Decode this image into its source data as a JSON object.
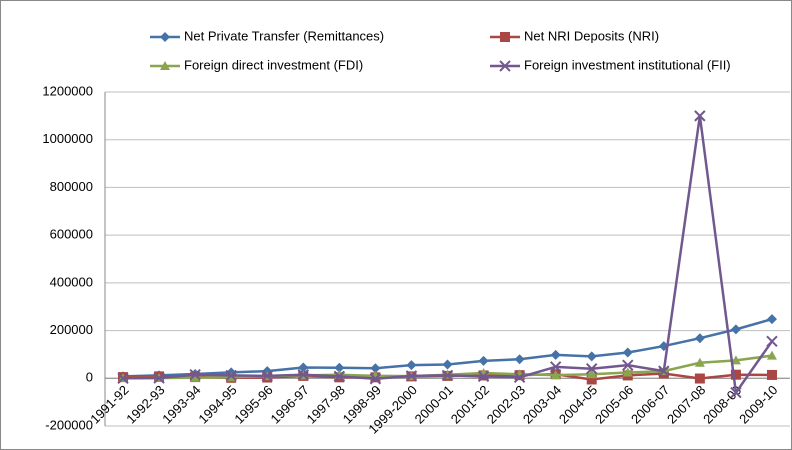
{
  "chart_data": {
    "type": "line",
    "categories": [
      "1991-92",
      "1992-93",
      "1993-94",
      "1994-95",
      "1995-96",
      "1996-97",
      "1997-98",
      "1998-99",
      "1999-2000",
      "2000-01",
      "2001-02",
      "2002-03",
      "2003-04",
      "2004-05",
      "2005-06",
      "2006-07",
      "2007-08",
      "2008-09",
      "2009-10"
    ],
    "series": [
      {
        "name": "Net Private Transfer (Remittances)",
        "color": "#4572a7",
        "marker": "diamond",
        "values": [
          8000,
          12000,
          18000,
          25000,
          30000,
          45000,
          44000,
          42000,
          55000,
          58000,
          73000,
          80000,
          98000,
          92000,
          108000,
          135000,
          168000,
          205000,
          248000
        ]
      },
      {
        "name": "Net NRI Deposits (NRI)",
        "color": "#aa4643",
        "marker": "square",
        "values": [
          5000,
          8000,
          5000,
          2000,
          3000,
          10000,
          4000,
          4000,
          8000,
          10000,
          12000,
          13000,
          17000,
          -5000,
          12000,
          20000,
          -1000,
          15000,
          14000
        ]
      },
      {
        "name": "Foreign direct investment (FDI)",
        "color": "#89a54e",
        "marker": "triangle",
        "values": [
          500,
          1000,
          2500,
          4500,
          9000,
          12000,
          15000,
          10000,
          9000,
          15000,
          22000,
          17000,
          13000,
          17000,
          24000,
          30000,
          65000,
          75000,
          95000
        ]
      },
      {
        "name": "Foreign investment institutional (FII)",
        "color": "#71588f",
        "marker": "x",
        "values": [
          0,
          1000,
          15000,
          12000,
          10000,
          15000,
          8000,
          -2000,
          10000,
          12000,
          8000,
          4000,
          48000,
          40000,
          55000,
          30000,
          1100000,
          -60000,
          155000
        ]
      }
    ],
    "ylim": [
      -200000,
      1200000
    ],
    "yticks": [
      -200000,
      0,
      200000,
      400000,
      600000,
      800000,
      1000000,
      1200000
    ],
    "grid": true,
    "legend": "top"
  }
}
